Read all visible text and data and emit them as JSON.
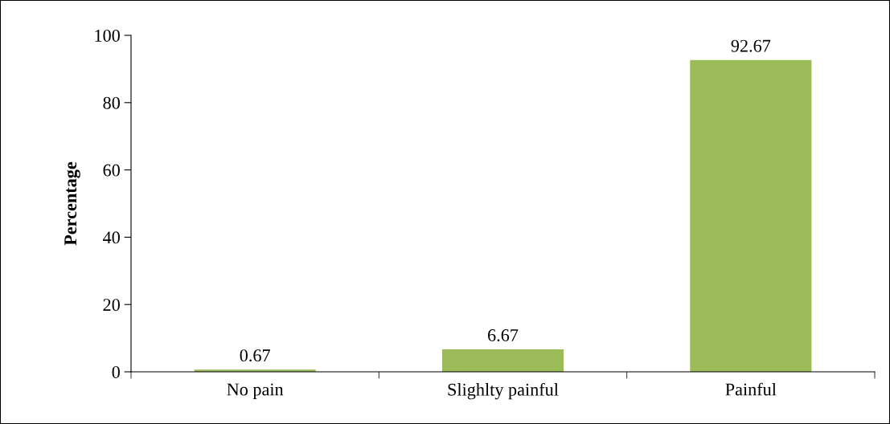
{
  "chart_data": {
    "type": "bar",
    "ylabel": "Percentage",
    "categories": [
      "No pain",
      "Slighlty painful",
      "Painful"
    ],
    "values": [
      0.67,
      6.67,
      92.67
    ],
    "color": "#9bbb59",
    "ylim": [
      0,
      100
    ],
    "yticks": [
      0,
      20,
      40,
      60,
      80,
      100
    ],
    "grid": false,
    "data_labels": true
  }
}
